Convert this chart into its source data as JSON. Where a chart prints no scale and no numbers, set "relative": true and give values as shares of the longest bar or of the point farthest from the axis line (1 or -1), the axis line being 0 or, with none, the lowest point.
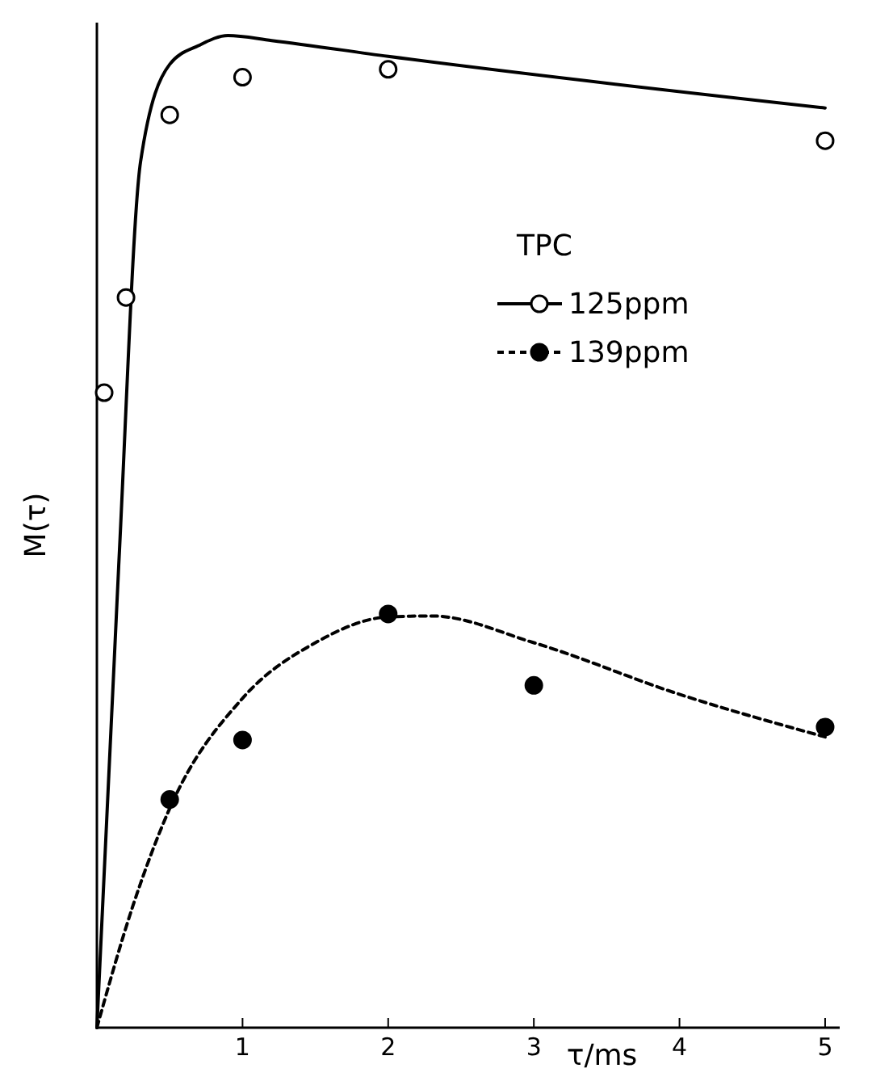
{
  "chart_data": {
    "type": "line",
    "relative": true,
    "xlabel": "τ/ms",
    "ylabel": "M(τ)",
    "legend_title": "TPC",
    "legend": "right",
    "xlim": [
      0,
      5.1
    ],
    "xticks": [
      1,
      2,
      3,
      4,
      5
    ],
    "grid": false,
    "series": [
      {
        "name": "125ppm",
        "color": "#000000",
        "line_style": "solid",
        "x": [
          0,
          0.15,
          0.3,
          0.5,
          0.7,
          0.9,
          1.2,
          2,
          5
        ],
        "values": [
          0,
          0.466,
          0.873,
          0.971,
          0.99,
          1.0,
          0.995,
          0.979,
          0.927
        ]
      },
      {
        "type": "scatter",
        "color": "#ffffff",
        "marker": "circle",
        "x": [
          0.05,
          0.2,
          0.5,
          1,
          2,
          5
        ],
        "values": [
          0.64,
          0.736,
          0.92,
          0.958,
          0.966,
          0.894
        ]
      },
      {
        "name": "139ppm",
        "color": "#000000",
        "line_style": "dashed",
        "x": [
          0,
          0.25,
          0.5,
          1,
          1.5,
          2,
          2.3,
          3,
          4,
          5
        ],
        "values": [
          0,
          0.124,
          0.221,
          0.332,
          0.388,
          0.414,
          0.415,
          0.388,
          0.336,
          0.293
        ]
      },
      {
        "type": "scatter",
        "color": "#000000",
        "marker": "circle",
        "x": [
          0.5,
          1,
          2,
          3,
          5
        ],
        "values": [
          0.23,
          0.29,
          0.417,
          0.345,
          0.303
        ]
      }
    ]
  }
}
